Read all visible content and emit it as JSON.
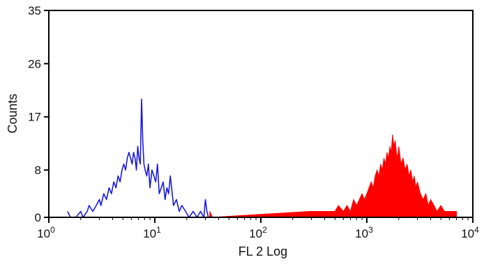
{
  "chart_data": {
    "type": "area",
    "xlabel": "FL 2 Log",
    "ylabel": "Counts",
    "x_scale": "log",
    "xlim": [
      1,
      10000
    ],
    "ylim": [
      0,
      35
    ],
    "x_ticks": [
      {
        "value": 1,
        "base": "10",
        "exp": "0"
      },
      {
        "value": 10,
        "base": "10",
        "exp": "1"
      },
      {
        "value": 100,
        "base": "10",
        "exp": "2"
      },
      {
        "value": 1000,
        "base": "10",
        "exp": "3"
      },
      {
        "value": 10000,
        "base": "10",
        "exp": "4"
      }
    ],
    "y_ticks": [
      "0",
      "8",
      "17",
      "26",
      "35"
    ],
    "grid": false,
    "series": [
      {
        "style": "line",
        "color": "#1a1adb",
        "x": [
          1.5,
          1.6,
          1.8,
          2.0,
          2.1,
          2.3,
          2.4,
          2.6,
          2.8,
          3.0,
          3.1,
          3.3,
          3.5,
          3.7,
          3.9,
          4.1,
          4.3,
          4.5,
          4.7,
          4.9,
          5.1,
          5.3,
          5.5,
          5.7,
          5.9,
          6.1,
          6.3,
          6.5,
          6.7,
          6.9,
          7.1,
          7.3,
          7.5,
          7.7,
          7.9,
          8.1,
          8.4,
          8.7,
          9.0,
          9.4,
          9.8,
          10.2,
          10.6,
          11.0,
          11.5,
          12.0,
          12.5,
          13.0,
          13.5,
          14.0,
          15.0,
          16.0,
          17.0,
          18.0,
          19.5,
          21.0,
          23.0,
          25.0,
          27.0,
          29.0,
          30.0,
          31.0,
          32.0
        ],
        "y": [
          1,
          0,
          0,
          1,
          0,
          1,
          2,
          1,
          2,
          3,
          2,
          4,
          3,
          5,
          4,
          6,
          5,
          7,
          6,
          8,
          9,
          8,
          10,
          11,
          10,
          9,
          11,
          10,
          8,
          12,
          10,
          9,
          20,
          13,
          9,
          8,
          7,
          9,
          5,
          8,
          7,
          6,
          9,
          4,
          5,
          6,
          3,
          5,
          4,
          7,
          2,
          3,
          1,
          2,
          1,
          0,
          1,
          0,
          1,
          0,
          3,
          1,
          0
        ]
      },
      {
        "style": "filled",
        "color": "#ff0000",
        "x": [
          33,
          35,
          290,
          500,
          540,
          600,
          650,
          700,
          750,
          800,
          850,
          900,
          950,
          1000,
          1050,
          1100,
          1150,
          1200,
          1250,
          1300,
          1350,
          1400,
          1450,
          1500,
          1550,
          1600,
          1650,
          1700,
          1750,
          1800,
          1850,
          1900,
          1950,
          2000,
          2100,
          2200,
          2300,
          2400,
          2500,
          2600,
          2700,
          2800,
          2900,
          3000,
          3200,
          3400,
          3600,
          3800,
          4000,
          4300,
          4600,
          5000,
          5400,
          7000
        ],
        "y": [
          1,
          0,
          1,
          1,
          2,
          1,
          2,
          1,
          3,
          2,
          3,
          4,
          3,
          4,
          5,
          6,
          5,
          7,
          8,
          7,
          9,
          8,
          10,
          9,
          11,
          10,
          12,
          11,
          14,
          12,
          13,
          11,
          10,
          12,
          9,
          10,
          8,
          9,
          7,
          8,
          6,
          7,
          5,
          6,
          4,
          3,
          4,
          2,
          3,
          2,
          1,
          2,
          1,
          1
        ]
      }
    ]
  }
}
